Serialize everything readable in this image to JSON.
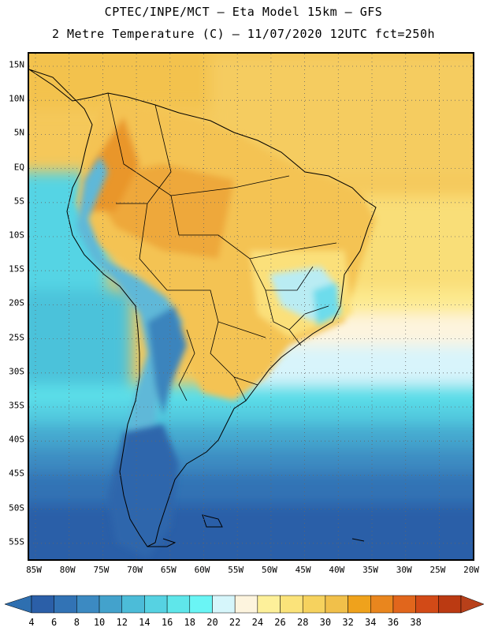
{
  "title_line1": "CPTEC/INPE/MCT –  Eta Model 15km – GFS",
  "title_line2": "2 Metre Temperature (C) – 11/07/2020 12UTC fct=250h",
  "lat_labels": [
    "15N",
    "10N",
    "5N",
    "EQ",
    "5S",
    "10S",
    "15S",
    "20S",
    "25S",
    "30S",
    "35S",
    "40S",
    "45S",
    "50S",
    "55S"
  ],
  "lon_labels": [
    "85W",
    "80W",
    "75W",
    "70W",
    "65W",
    "60W",
    "55W",
    "50W",
    "45W",
    "40W",
    "35W",
    "30W",
    "25W",
    "20W"
  ],
  "colorbar": {
    "levels": [
      "4",
      "6",
      "8",
      "10",
      "12",
      "14",
      "16",
      "18",
      "20",
      "22",
      "24",
      "26",
      "28",
      "30",
      "32",
      "34",
      "36",
      "38"
    ],
    "colors": [
      "#2b5fa8",
      "#3273b5",
      "#3c8ac2",
      "#43a2cc",
      "#4cbcd8",
      "#56d2e2",
      "#5fe6ea",
      "#6af5f5",
      "#d6f6fb",
      "#fdf4de",
      "#fdf09a",
      "#fbe37a",
      "#f6d25e",
      "#f1c04a",
      "#efa21c",
      "#e9861e",
      "#e1661c",
      "#d24a17",
      "#bb3a12"
    ],
    "under_color": "#2e6fb0",
    "over_color": "#b8401a"
  }
}
